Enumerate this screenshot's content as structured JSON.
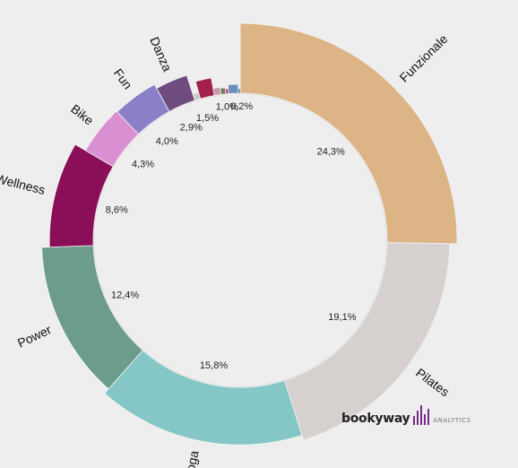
{
  "chart_data": {
    "type": "pie",
    "variant": "radial-donut",
    "categories": [
      "Funzionale",
      "Pilates",
      "Yoga",
      "Power",
      "Wellness",
      "Bike",
      "Fun",
      "Danza",
      "",
      "",
      "",
      "",
      "",
      "",
      ""
    ],
    "values": [
      24.3,
      19.1,
      15.8,
      12.4,
      8.6,
      4.3,
      4.0,
      2.9,
      0.6,
      1.5,
      0.7,
      0.5,
      0.3,
      1.0,
      0.2
    ],
    "value_labels": [
      "24,3%",
      "19,1%",
      "15,8%",
      "12,4%",
      "8,6%",
      "4,3%",
      "4,0%",
      "2,9%",
      "",
      "1,5%",
      "",
      "",
      "",
      "1,0%",
      "0,2%"
    ],
    "colors": [
      "#dcb486",
      "#d6d0cf",
      "#85c6c6",
      "#6c9c8b",
      "#8a0f58",
      "#d98fd1",
      "#8b80c8",
      "#6f4c80",
      "#c9c9c9",
      "#a0204a",
      "#c898b0",
      "#6f7f55",
      "#c04090",
      "#6a8fb8",
      "#1e6b8a"
    ]
  },
  "brand": {
    "name": "bookyway",
    "sub": "ANALYTICS",
    "accent": "#7b2a8a"
  }
}
